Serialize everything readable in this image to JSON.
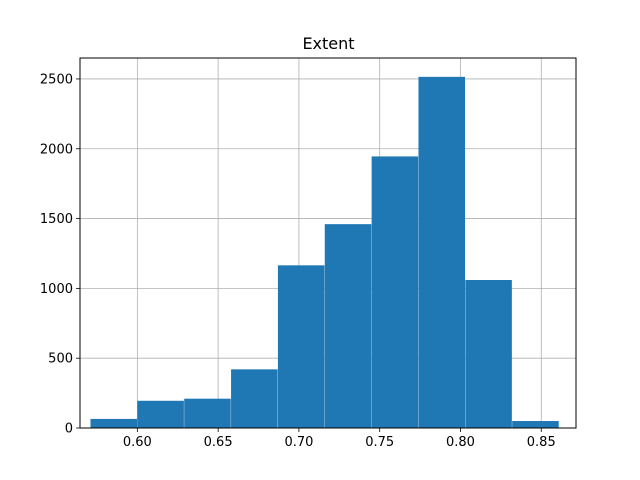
{
  "chart_data": {
    "type": "bar",
    "title": "Extent",
    "xlabel": "",
    "ylabel": "",
    "xlim": [
      0.5645,
      0.8715
    ],
    "ylim": [
      0,
      2650
    ],
    "grid": true,
    "bar_color": "#1f77b4",
    "grid_color": "#b0b0b0",
    "bins": [
      {
        "x0": 0.571,
        "x1": 0.5998,
        "value": 65
      },
      {
        "x0": 0.6,
        "x1": 0.6288,
        "value": 195
      },
      {
        "x0": 0.629,
        "x1": 0.6578,
        "value": 210
      },
      {
        "x0": 0.658,
        "x1": 0.6868,
        "value": 420
      },
      {
        "x0": 0.687,
        "x1": 0.7158,
        "value": 1165
      },
      {
        "x0": 0.716,
        "x1": 0.7448,
        "value": 1460
      },
      {
        "x0": 0.745,
        "x1": 0.7738,
        "value": 1945
      },
      {
        "x0": 0.774,
        "x1": 0.8028,
        "value": 2515
      },
      {
        "x0": 0.803,
        "x1": 0.8318,
        "value": 1060
      },
      {
        "x0": 0.832,
        "x1": 0.8608,
        "value": 50
      }
    ],
    "x_ticks": [
      {
        "value": 0.6,
        "label": "0.60"
      },
      {
        "value": 0.65,
        "label": "0.65"
      },
      {
        "value": 0.7,
        "label": "0.70"
      },
      {
        "value": 0.75,
        "label": "0.75"
      },
      {
        "value": 0.8,
        "label": "0.80"
      },
      {
        "value": 0.85,
        "label": "0.85"
      }
    ],
    "y_ticks": [
      {
        "value": 0,
        "label": "0"
      },
      {
        "value": 500,
        "label": "500"
      },
      {
        "value": 1000,
        "label": "1000"
      },
      {
        "value": 1500,
        "label": "1500"
      },
      {
        "value": 2000,
        "label": "2000"
      },
      {
        "value": 2500,
        "label": "2500"
      }
    ]
  }
}
